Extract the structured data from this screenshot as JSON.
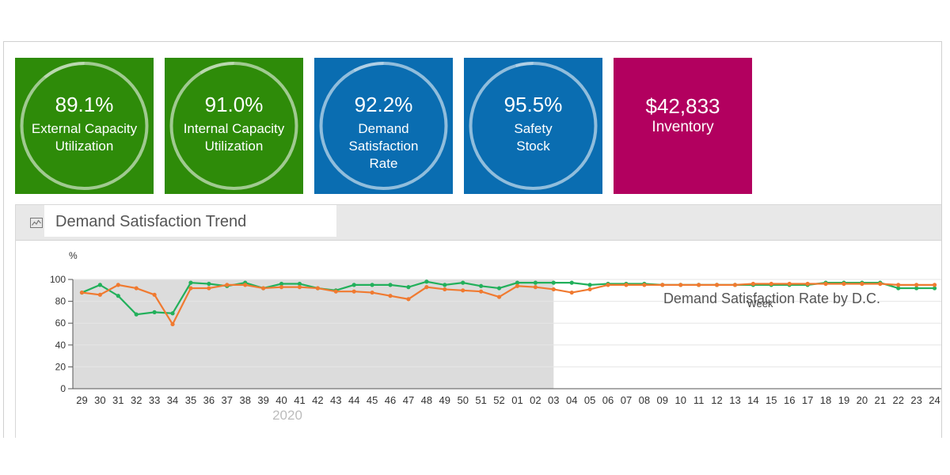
{
  "tiles": [
    {
      "value": "89.1%",
      "label_line1": "External Capacity",
      "label_line2": "Utilization",
      "label_line3": "",
      "color": "#2e8b09",
      "ring": 0.891
    },
    {
      "value": "91.0%",
      "label_line1": "Internal Capacity",
      "label_line2": "Utilization",
      "label_line3": "",
      "color": "#2e8b09",
      "ring": 0.91
    },
    {
      "value": "92.2%",
      "label_line1": "Demand",
      "label_line2": "Satisfaction",
      "label_line3": "Rate",
      "color": "#0a6db1",
      "ring": 0.922
    },
    {
      "value": "95.5%",
      "label_line1": "Safety",
      "label_line2": "Stock",
      "label_line3": "",
      "color": "#0a6db1",
      "ring": 0.955
    },
    {
      "value": "$42,833",
      "label_line1": "Inventory",
      "label_line2": "",
      "label_line3": "",
      "color": "#b2005f"
    }
  ],
  "panel": {
    "title": "Demand Satisfaction Trend",
    "icon": "line-chart-icon"
  },
  "chart_data": {
    "type": "line",
    "title": "Demand Satisfaction Rate by D.C.",
    "ylabel": "%",
    "xlabel": "Week",
    "ylim": [
      0,
      100
    ],
    "yticks": [
      0,
      20,
      40,
      60,
      80,
      100
    ],
    "x": [
      "29",
      "30",
      "31",
      "32",
      "33",
      "34",
      "35",
      "36",
      "37",
      "38",
      "39",
      "40",
      "41",
      "42",
      "43",
      "44",
      "45",
      "46",
      "47",
      "48",
      "49",
      "50",
      "51",
      "52",
      "01",
      "02",
      "03",
      "04",
      "05",
      "06",
      "07",
      "08",
      "09",
      "10",
      "11",
      "12",
      "13",
      "14",
      "15",
      "16",
      "17",
      "18",
      "19",
      "20",
      "21",
      "22",
      "23",
      "24"
    ],
    "year_label": "2020",
    "shaded_range": [
      "29",
      "02"
    ],
    "series": [
      {
        "color": "#22b05b",
        "values": [
          88,
          95,
          85,
          68,
          70,
          69,
          97,
          96,
          94,
          97,
          92,
          96,
          96,
          92,
          90,
          95,
          95,
          95,
          93,
          98,
          95,
          97,
          94,
          92,
          97,
          97,
          97,
          97,
          95,
          96,
          96,
          96,
          95,
          95,
          95,
          95,
          95,
          95,
          95,
          95,
          95,
          97,
          97,
          97,
          97,
          92,
          92,
          92
        ]
      },
      {
        "color": "#f07a30",
        "values": [
          88,
          86,
          95,
          92,
          86,
          59,
          92,
          92,
          95,
          95,
          92,
          93,
          93,
          92,
          89,
          89,
          88,
          85,
          82,
          93,
          91,
          90,
          89,
          84,
          94,
          93,
          91,
          88,
          91,
          95,
          95,
          95,
          95,
          95,
          95,
          95,
          95,
          96,
          96,
          96,
          96,
          96,
          96,
          96,
          96,
          95,
          95,
          95
        ]
      }
    ]
  }
}
